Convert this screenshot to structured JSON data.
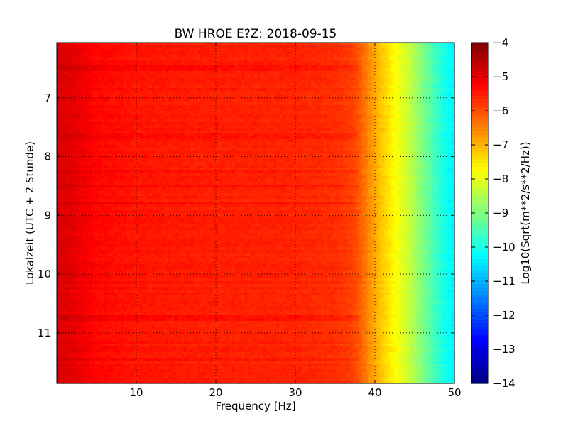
{
  "chart_data": {
    "type": "heatmap",
    "title": "BW HROE E?Z: 2018-09-15",
    "xlabel": "Frequency [Hz]",
    "ylabel": "Lokalzeit (UTC + 2 Stunde)",
    "colorbar_label": "Log10(Sqrt(m**2/s**2/Hz))",
    "colormap": "jet",
    "xlim": [
      0,
      50
    ],
    "ylim": [
      6.06,
      11.86
    ],
    "y_inverted": true,
    "clim": [
      -14,
      -4
    ],
    "x_ticks": [
      10,
      20,
      30,
      40,
      50
    ],
    "x_tick_labels": [
      "10",
      "20",
      "30",
      "40",
      "50"
    ],
    "y_ticks": [
      7,
      8,
      9,
      10,
      11
    ],
    "y_tick_labels": [
      "7",
      "8",
      "9",
      "10",
      "11"
    ],
    "colorbar_ticks": [
      -4,
      -5,
      -6,
      -7,
      -8,
      -9,
      -10,
      -11,
      -12,
      -13,
      -14
    ],
    "colorbar_tick_labels": [
      "−4",
      "−5",
      "−6",
      "−7",
      "−8",
      "−9",
      "−10",
      "−11",
      "−12",
      "−13",
      "−14"
    ],
    "grid": true,
    "spectral_profile": {
      "frequency_hz": [
        0,
        2,
        5,
        10,
        20,
        30,
        35,
        37,
        38,
        40,
        42,
        44,
        46,
        48,
        50
      ],
      "log_amplitude": [
        -4.9,
        -5.0,
        -5.3,
        -5.45,
        -5.55,
        -5.6,
        -5.7,
        -5.85,
        -6.1,
        -6.9,
        -7.6,
        -8.2,
        -9.0,
        -9.8,
        -10.4
      ]
    },
    "bright_bands_local_time": [
      6.5,
      7.65,
      8.25,
      8.5,
      8.8,
      10.75,
      11.45
    ]
  }
}
